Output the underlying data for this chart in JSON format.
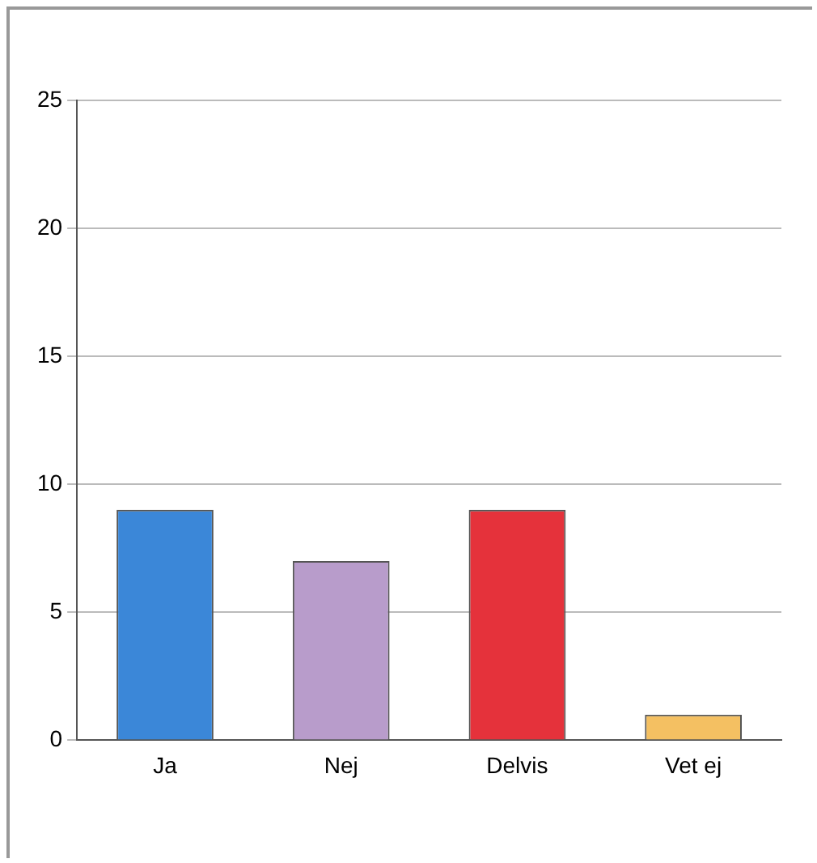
{
  "chart_data": {
    "type": "bar",
    "categories": [
      "Ja",
      "Nej",
      "Delvis",
      "Vet ej"
    ],
    "values": [
      9,
      7,
      9,
      1
    ],
    "colors": [
      "#3b87d8",
      "#b89ccb",
      "#e5323b",
      "#f4c062"
    ],
    "ylim": [
      0,
      25
    ],
    "yticks": [
      0,
      5,
      10,
      15,
      20,
      25
    ],
    "grid": "y",
    "legend": false
  }
}
